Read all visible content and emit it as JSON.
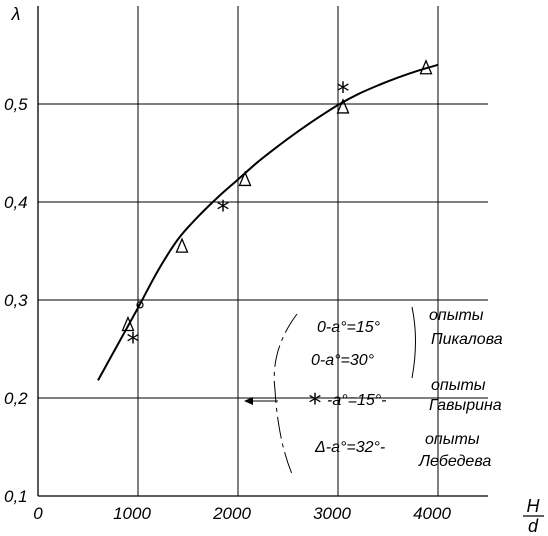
{
  "chart_data": {
    "type": "scatter",
    "title": "",
    "xlabel": {
      "numerator": "H",
      "denominator": "d"
    },
    "ylabel": "λ",
    "xlim": [
      0,
      4500
    ],
    "ylim": [
      0.1,
      0.6
    ],
    "grid": true,
    "x_ticks": [
      {
        "value": 0,
        "label": "0"
      },
      {
        "value": 1000,
        "label": "1000"
      },
      {
        "value": 2000,
        "label": "2000"
      },
      {
        "value": 3000,
        "label": "3000"
      },
      {
        "value": 4000,
        "label": "4000"
      }
    ],
    "y_ticks": [
      {
        "value": 0.1,
        "label": "0,1"
      },
      {
        "value": 0.2,
        "label": "0,2"
      },
      {
        "value": 0.3,
        "label": "0,3"
      },
      {
        "value": 0.4,
        "label": "0,4"
      },
      {
        "value": 0.5,
        "label": "0,5"
      }
    ],
    "curve": {
      "x": [
        600,
        800,
        1000,
        1200,
        1400,
        1600,
        1800,
        2000,
        2200,
        2400,
        2600,
        2800,
        3000,
        3200,
        3400,
        3600,
        3800,
        4000
      ],
      "y": [
        0.218,
        0.255,
        0.292,
        0.33,
        0.362,
        0.385,
        0.405,
        0.423,
        0.441,
        0.457,
        0.472,
        0.486,
        0.499,
        0.51,
        0.519,
        0.527,
        0.534,
        0.54
      ]
    },
    "series": [
      {
        "marker": "o",
        "x": [
          1020
        ],
        "y": [
          0.295
        ]
      },
      {
        "marker": "*",
        "x": [
          950,
          1850,
          3050
        ],
        "y": [
          0.257,
          0.392,
          0.513
        ]
      },
      {
        "marker": "Δ",
        "x": [
          900,
          1440,
          2070,
          3050,
          3880
        ],
        "y": [
          0.275,
          0.355,
          0.423,
          0.497,
          0.537
        ]
      }
    ],
    "legend": {
      "placement": "bottom-right",
      "entries": [
        {
          "text": "0-a°=15°",
          "group": "опыты",
          "author": "Пикалова"
        },
        {
          "text": "0-a°=30°"
        },
        {
          "symbol": "*",
          "text": "-a°=15°-",
          "group": "опыты",
          "author": "Гавырина"
        },
        {
          "text": "Δ-a°=32°-",
          "group": "опыты",
          "author": "Лебедева"
        }
      ]
    }
  }
}
